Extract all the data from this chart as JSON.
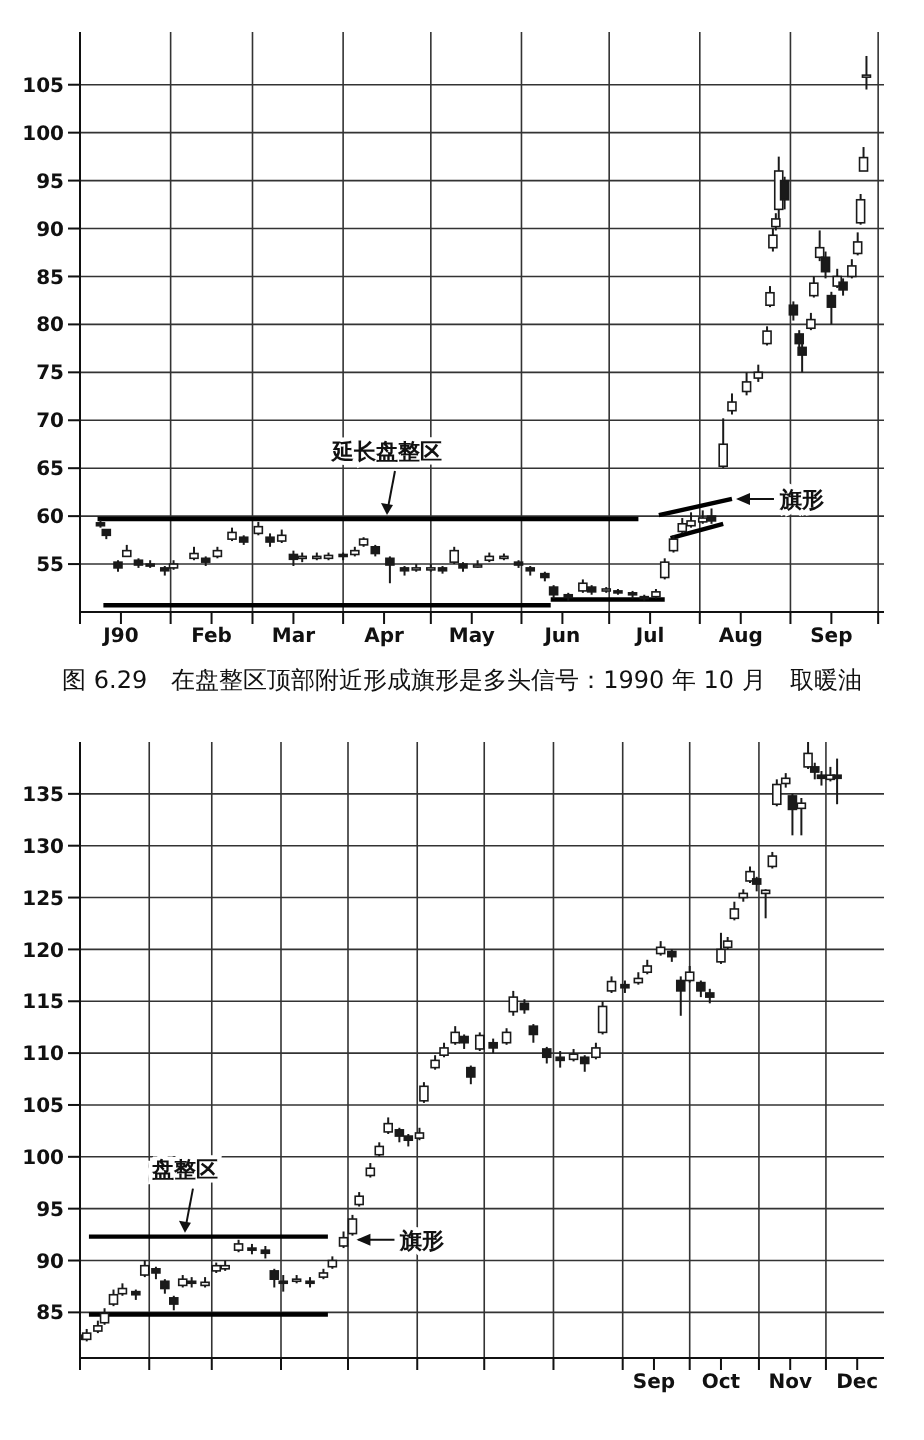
{
  "chart_data": [
    {
      "type": "candlestick",
      "title": "图 6.29　在盘整区顶部附近形成旗形是多头信号：1990 年 10 月　取暖油",
      "color": "#1a1a1a",
      "grid": true,
      "xlim": [
        "1990-01-01",
        "1990-10-03"
      ],
      "ylim": [
        50,
        110.5
      ],
      "yticks": [
        55,
        60,
        65,
        70,
        75,
        80,
        85,
        90,
        95,
        100,
        105
      ],
      "xticks": [
        {
          "value": "1990-01-01",
          "label": null
        },
        {
          "value": "1990-01-15",
          "label": "J90"
        },
        {
          "value": "1990-02-01",
          "label": null
        },
        {
          "value": "1990-02-15",
          "label": "Feb"
        },
        {
          "value": "1990-03-01",
          "label": null
        },
        {
          "value": "1990-03-15",
          "label": "Mar"
        },
        {
          "value": "1990-04-01",
          "label": null
        },
        {
          "value": "1990-04-15",
          "label": "Apr"
        },
        {
          "value": "1990-05-01",
          "label": null
        },
        {
          "value": "1990-05-15",
          "label": "May"
        },
        {
          "value": "1990-06-01",
          "label": null
        },
        {
          "value": "1990-06-15",
          "label": "Jun"
        },
        {
          "value": "1990-07-01",
          "label": null
        },
        {
          "value": "1990-07-15",
          "label": "Jul"
        },
        {
          "value": "1990-08-01",
          "label": null
        },
        {
          "value": "1990-08-15",
          "label": "Aug"
        },
        {
          "value": "1990-09-01",
          "label": null
        },
        {
          "value": "1990-09-15",
          "label": "Sep"
        },
        {
          "value": "1990-10-01",
          "label": null
        }
      ],
      "x": [
        "1990-01-08",
        "1990-01-10",
        "1990-01-14",
        "1990-01-17",
        "1990-01-21",
        "1990-01-25",
        "1990-01-30",
        "1990-02-02",
        "1990-02-09",
        "1990-02-13",
        "1990-02-17",
        "1990-02-22",
        "1990-02-26",
        "1990-03-03",
        "1990-03-07",
        "1990-03-11",
        "1990-03-15",
        "1990-03-18",
        "1990-03-23",
        "1990-03-27",
        "1990-04-01",
        "1990-04-05",
        "1990-04-08",
        "1990-04-12",
        "1990-04-17",
        "1990-04-22",
        "1990-04-26",
        "1990-05-01",
        "1990-05-05",
        "1990-05-09",
        "1990-05-12",
        "1990-05-17",
        "1990-05-21",
        "1990-05-26",
        "1990-05-31",
        "1990-06-04",
        "1990-06-09",
        "1990-06-12",
        "1990-06-17",
        "1990-06-22",
        "1990-06-25",
        "1990-06-30",
        "1990-07-04",
        "1990-07-09",
        "1990-07-13",
        "1990-07-17",
        "1990-07-20",
        "1990-07-23",
        "1990-07-26",
        "1990-07-29",
        "1990-08-02",
        "1990-08-05",
        "1990-08-09",
        "1990-08-12",
        "1990-08-17",
        "1990-08-21",
        "1990-08-24",
        "1990-08-25",
        "1990-08-26",
        "1990-08-27",
        "1990-08-28",
        "1990-08-30",
        "1990-09-02",
        "1990-09-04",
        "1990-09-05",
        "1990-09-08",
        "1990-09-09",
        "1990-09-11",
        "1990-09-13",
        "1990-09-15",
        "1990-09-17",
        "1990-09-19",
        "1990-09-22",
        "1990-09-24",
        "1990-09-25",
        "1990-09-26",
        "1990-09-27"
      ],
      "ohlc": [
        [
          59.3,
          59.6,
          58.8,
          59.0
        ],
        [
          58.6,
          58.6,
          57.6,
          58.0
        ],
        [
          55.2,
          55.4,
          54.2,
          54.6
        ],
        [
          55.8,
          57.0,
          55.8,
          56.4
        ],
        [
          55.4,
          55.6,
          54.6,
          54.9
        ],
        [
          55.0,
          55.4,
          54.6,
          54.9
        ],
        [
          54.6,
          54.8,
          53.8,
          54.3
        ],
        [
          54.6,
          55.4,
          54.4,
          55.0
        ],
        [
          55.6,
          56.8,
          55.4,
          56.1
        ],
        [
          55.6,
          55.8,
          54.8,
          55.2
        ],
        [
          55.8,
          56.8,
          55.6,
          56.4
        ],
        [
          57.6,
          58.8,
          57.4,
          58.3
        ],
        [
          57.8,
          58.0,
          57.0,
          57.3
        ],
        [
          58.2,
          59.4,
          58.0,
          58.9
        ],
        [
          57.8,
          58.2,
          56.8,
          57.3
        ],
        [
          57.4,
          58.6,
          57.2,
          58.0
        ],
        [
          56.0,
          56.4,
          54.8,
          55.5
        ],
        [
          55.6,
          56.2,
          55.2,
          55.8
        ],
        [
          55.6,
          56.2,
          55.4,
          55.8
        ],
        [
          55.6,
          56.2,
          55.4,
          55.9
        ],
        [
          56.0,
          56.2,
          55.4,
          55.8
        ],
        [
          56.0,
          56.8,
          55.8,
          56.4
        ],
        [
          57.0,
          57.8,
          56.8,
          57.6
        ],
        [
          56.8,
          57.0,
          55.8,
          56.1
        ],
        [
          55.6,
          55.8,
          53.0,
          54.9
        ],
        [
          54.6,
          54.8,
          53.8,
          54.3
        ],
        [
          54.4,
          55.0,
          54.2,
          54.6
        ],
        [
          54.4,
          55.0,
          54.2,
          54.6
        ],
        [
          54.6,
          54.8,
          54.0,
          54.3
        ],
        [
          55.2,
          56.8,
          55.0,
          56.4
        ],
        [
          55.0,
          55.2,
          54.2,
          54.6
        ],
        [
          54.8,
          55.4,
          54.6,
          54.9
        ],
        [
          55.4,
          56.2,
          55.2,
          55.8
        ],
        [
          55.6,
          56.1,
          55.4,
          55.8
        ],
        [
          55.2,
          55.4,
          54.6,
          54.9
        ],
        [
          54.6,
          54.8,
          53.8,
          54.3
        ],
        [
          54.0,
          54.2,
          53.2,
          53.6
        ],
        [
          52.6,
          52.8,
          51.4,
          51.8
        ],
        [
          51.8,
          52.0,
          51.2,
          51.5
        ],
        [
          52.2,
          53.4,
          52.0,
          53.0
        ],
        [
          52.6,
          52.8,
          51.8,
          52.1
        ],
        [
          52.2,
          52.6,
          52.0,
          52.4
        ],
        [
          52.2,
          52.4,
          51.8,
          52.1
        ],
        [
          52.0,
          52.2,
          51.4,
          51.8
        ],
        [
          51.6,
          51.8,
          51.2,
          51.4
        ],
        [
          51.6,
          52.4,
          51.4,
          52.1
        ],
        [
          53.6,
          55.6,
          53.4,
          55.2
        ],
        [
          56.4,
          58.0,
          56.2,
          57.6
        ],
        [
          58.4,
          59.8,
          58.2,
          59.2
        ],
        [
          59.0,
          60.4,
          58.8,
          59.5
        ],
        [
          59.4,
          60.6,
          59.2,
          59.8
        ],
        [
          60.0,
          60.8,
          59.2,
          59.5
        ],
        [
          65.2,
          70.2,
          65.0,
          67.5
        ],
        [
          71.0,
          72.8,
          70.6,
          71.9
        ],
        [
          73.0,
          75.0,
          72.6,
          74.0
        ],
        [
          74.4,
          75.8,
          74.0,
          75.0
        ],
        [
          78.0,
          79.8,
          77.8,
          79.3
        ],
        [
          82.0,
          84.0,
          81.8,
          83.3
        ],
        [
          88.0,
          90.0,
          87.6,
          89.3
        ],
        [
          90.2,
          91.6,
          89.8,
          91.0
        ],
        [
          92.0,
          97.5,
          91.0,
          96.0
        ],
        [
          95.0,
          95.4,
          92.0,
          93.0
        ],
        [
          82.0,
          82.4,
          80.4,
          81.0
        ],
        [
          79.0,
          79.4,
          77.6,
          78.0
        ],
        [
          77.6,
          78.2,
          75.0,
          76.8
        ],
        [
          79.6,
          81.2,
          79.4,
          80.5
        ],
        [
          83.0,
          85.0,
          82.8,
          84.3
        ],
        [
          87.0,
          89.8,
          86.6,
          88.0
        ],
        [
          87.0,
          87.6,
          84.8,
          85.5
        ],
        [
          83.0,
          83.4,
          80.0,
          81.8
        ],
        [
          84.0,
          85.8,
          83.8,
          85.0
        ],
        [
          84.4,
          84.8,
          83.0,
          83.6
        ],
        [
          85.0,
          86.8,
          84.8,
          86.1
        ],
        [
          87.4,
          89.6,
          87.2,
          88.6
        ],
        [
          90.6,
          93.6,
          90.4,
          93.0
        ],
        [
          96.0,
          98.5,
          96.0,
          97.4
        ],
        [
          106.0,
          108.0,
          104.5,
          106.0
        ]
      ],
      "series": [
        {
          "type": "line",
          "color": "#000000",
          "x": [
            "1990-01-07",
            "1990-07-11"
          ],
          "values": [
            59.7,
            59.7
          ]
        },
        {
          "type": "line",
          "color": "#000000",
          "x": [
            "1990-01-09",
            "1990-06-11"
          ],
          "values": [
            50.7,
            50.7
          ]
        },
        {
          "type": "line",
          "color": "#000000",
          "x": [
            "1990-06-11",
            "1990-07-20"
          ],
          "values": [
            51.3,
            51.3
          ]
        },
        {
          "type": "line",
          "color": "#000000",
          "x": [
            "1990-07-18",
            "1990-08-12"
          ],
          "values": [
            60.1,
            61.8
          ]
        },
        {
          "type": "line",
          "color": "#000000",
          "x": [
            "1990-07-22",
            "1990-08-09"
          ],
          "values": [
            57.7,
            59.2
          ]
        }
      ],
      "annotations": [
        {
          "text": "延长盘整区",
          "x": "1990-04-16",
          "y": 59.7
        },
        {
          "text": "旗形",
          "x": "1990-08-12",
          "y": 61.8
        }
      ]
    },
    {
      "type": "candlestick",
      "color": "#1a1a1a",
      "grid": true,
      "xlim": [
        "--01-01",
        "--12-27"
      ],
      "ylim": [
        80.6,
        140
      ],
      "yticks": [
        85,
        90,
        95,
        100,
        105,
        110,
        115,
        120,
        125,
        130,
        135
      ],
      "xticks": [
        {
          "value": "--01-01",
          "label": null
        },
        {
          "value": "--02-01",
          "label": null
        },
        {
          "value": "--03-01",
          "label": null
        },
        {
          "value": "--04-01",
          "label": null
        },
        {
          "value": "--05-01",
          "label": null
        },
        {
          "value": "--06-01",
          "label": null
        },
        {
          "value": "--07-01",
          "label": null
        },
        {
          "value": "--08-01",
          "label": null
        },
        {
          "value": "--09-01",
          "label": null
        },
        {
          "value": "--09-15",
          "label": "Sep"
        },
        {
          "value": "--10-01",
          "label": null
        },
        {
          "value": "--10-15",
          "label": "Oct"
        },
        {
          "value": "--11-01",
          "label": null
        },
        {
          "value": "--11-15",
          "label": "Nov"
        },
        {
          "value": "--12-01",
          "label": null
        },
        {
          "value": "--12-15",
          "label": "Dec"
        }
      ],
      "x": [
        "--01-01",
        "--01-04",
        "--01-09",
        "--01-12",
        "--01-16",
        "--01-20",
        "--01-26",
        "--01-30",
        "--02-04",
        "--02-08",
        "--02-12",
        "--02-16",
        "--02-20",
        "--02-26",
        "--03-03",
        "--03-07",
        "--03-13",
        "--03-19",
        "--03-25",
        "--03-29",
        "--04-02",
        "--04-08",
        "--04-14",
        "--04-20",
        "--04-24",
        "--04-29",
        "--05-03",
        "--05-06",
        "--05-11",
        "--05-15",
        "--05-19",
        "--05-24",
        "--05-28",
        "--06-02",
        "--06-04",
        "--06-09",
        "--06-13",
        "--06-18",
        "--06-22",
        "--06-25",
        "--06-29",
        "--07-05",
        "--07-11",
        "--07-14",
        "--07-19",
        "--07-23",
        "--07-29",
        "--08-04",
        "--08-10",
        "--08-15",
        "--08-20",
        "--08-23",
        "--08-27",
        "--09-02",
        "--09-08",
        "--09-12",
        "--09-18",
        "--09-23",
        "--09-27",
        "--10-01",
        "--10-06",
        "--10-10",
        "--10-15",
        "--10-18",
        "--10-21",
        "--10-25",
        "--10-28",
        "--10-31",
        "--11-04",
        "--11-07",
        "--11-09",
        "--11-13",
        "--11-16",
        "--11-20",
        "--11-23",
        "--11-26",
        "--11-29",
        "--12-03",
        "--12-06"
      ],
      "ohlc": [
        [
          82.8,
          83.2,
          81.6,
          82.4
        ],
        [
          82.4,
          83.4,
          82.2,
          83.0
        ],
        [
          83.2,
          84.2,
          83.0,
          83.7
        ],
        [
          84.0,
          85.4,
          83.8,
          84.9
        ],
        [
          85.8,
          87.2,
          85.6,
          86.7
        ],
        [
          86.8,
          87.8,
          86.6,
          87.3
        ],
        [
          87.0,
          87.2,
          86.2,
          86.7
        ],
        [
          88.6,
          90.0,
          88.4,
          89.5
        ],
        [
          89.2,
          89.4,
          88.2,
          88.8
        ],
        [
          88.0,
          88.2,
          86.8,
          87.3
        ],
        [
          86.4,
          86.6,
          85.2,
          85.8
        ],
        [
          87.6,
          88.6,
          87.4,
          88.2
        ],
        [
          88.0,
          88.4,
          87.4,
          87.9
        ],
        [
          87.6,
          88.4,
          87.4,
          87.9
        ],
        [
          89.0,
          89.8,
          88.8,
          89.5
        ],
        [
          89.2,
          90.0,
          89.0,
          89.5
        ],
        [
          91.0,
          92.0,
          90.8,
          91.6
        ],
        [
          91.2,
          91.6,
          90.6,
          91.0
        ],
        [
          91.0,
          91.4,
          90.2,
          90.7
        ],
        [
          89.0,
          89.2,
          87.4,
          88.2
        ],
        [
          88.0,
          88.6,
          87.0,
          87.9
        ],
        [
          88.0,
          88.6,
          87.8,
          88.2
        ],
        [
          88.0,
          88.4,
          87.4,
          87.9
        ],
        [
          88.4,
          89.2,
          88.2,
          88.8
        ],
        [
          89.4,
          90.4,
          89.2,
          90.0
        ],
        [
          91.4,
          92.8,
          91.2,
          92.2
        ],
        [
          92.6,
          94.4,
          92.4,
          94.0
        ],
        [
          95.4,
          96.6,
          95.2,
          96.2
        ],
        [
          98.2,
          99.4,
          98.0,
          98.9
        ],
        [
          100.2,
          101.4,
          100.0,
          101.0
        ],
        [
          102.4,
          103.8,
          102.2,
          103.2
        ],
        [
          102.6,
          102.8,
          101.4,
          102.0
        ],
        [
          102.0,
          102.2,
          101.0,
          101.6
        ],
        [
          101.8,
          102.8,
          101.6,
          102.3
        ],
        [
          105.4,
          107.2,
          105.2,
          106.8
        ],
        [
          108.6,
          109.8,
          108.4,
          109.3
        ],
        [
          109.8,
          111.0,
          109.6,
          110.5
        ],
        [
          111.0,
          112.6,
          110.8,
          112.0
        ],
        [
          111.6,
          111.8,
          110.4,
          111.0
        ],
        [
          108.6,
          108.8,
          107.0,
          107.7
        ],
        [
          110.4,
          112.0,
          110.2,
          111.7
        ],
        [
          111.0,
          111.4,
          110.0,
          110.5
        ],
        [
          111.0,
          112.4,
          110.8,
          112.0
        ],
        [
          114.0,
          116.0,
          113.6,
          115.4
        ],
        [
          114.8,
          115.2,
          113.8,
          114.2
        ],
        [
          112.6,
          112.8,
          111.0,
          111.8
        ],
        [
          110.4,
          110.6,
          109.0,
          109.6
        ],
        [
          109.6,
          110.2,
          108.6,
          109.3
        ],
        [
          109.4,
          110.4,
          109.2,
          109.9
        ],
        [
          109.6,
          109.8,
          108.2,
          109.0
        ],
        [
          109.6,
          111.0,
          109.4,
          110.5
        ],
        [
          112.0,
          115.0,
          111.8,
          114.5
        ],
        [
          116.0,
          117.4,
          115.8,
          116.9
        ],
        [
          116.6,
          117.0,
          115.8,
          116.3
        ],
        [
          116.8,
          117.8,
          116.6,
          117.2
        ],
        [
          117.8,
          119.0,
          117.6,
          118.4
        ],
        [
          119.6,
          120.8,
          119.4,
          120.2
        ],
        [
          119.8,
          120.0,
          118.8,
          119.3
        ],
        [
          117.0,
          117.4,
          113.6,
          116.0
        ],
        [
          117.0,
          118.4,
          116.8,
          117.8
        ],
        [
          116.8,
          117.0,
          115.4,
          116.0
        ],
        [
          115.8,
          116.2,
          114.8,
          115.4
        ],
        [
          118.8,
          121.6,
          118.6,
          120.0
        ],
        [
          120.2,
          121.2,
          120.0,
          120.8
        ],
        [
          123.0,
          124.6,
          122.8,
          123.9
        ],
        [
          125.0,
          125.8,
          124.6,
          125.4
        ],
        [
          126.6,
          128.0,
          126.4,
          127.5
        ],
        [
          126.8,
          127.0,
          125.6,
          126.3
        ],
        [
          125.4,
          125.8,
          123.0,
          125.7
        ],
        [
          128.0,
          129.4,
          127.8,
          129.0
        ],
        [
          134.0,
          136.4,
          133.8,
          135.9
        ],
        [
          136.0,
          137.0,
          135.6,
          136.5
        ],
        [
          134.8,
          135.0,
          131.0,
          133.5
        ],
        [
          133.6,
          134.6,
          131.0,
          134.1
        ],
        [
          137.6,
          140.0,
          137.4,
          138.9
        ],
        [
          137.6,
          138.0,
          136.4,
          137.1
        ],
        [
          136.8,
          137.2,
          135.8,
          136.5
        ],
        [
          136.4,
          137.6,
          136.2,
          136.8
        ],
        [
          136.8,
          138.4,
          134.0,
          136.5
        ]
      ],
      "series": [
        {
          "type": "line",
          "color": "#000000",
          "x": [
            "--01-05",
            "--04-22"
          ],
          "values": [
            92.3,
            92.3
          ]
        },
        {
          "type": "line",
          "color": "#000000",
          "x": [
            "--01-05",
            "--04-22"
          ],
          "values": [
            84.8,
            84.8
          ]
        }
      ],
      "annotations": [
        {
          "text": "盘整区",
          "x": "--02-17",
          "y": 92.3
        },
        {
          "text": "旗形",
          "x": "--05-03",
          "y": 92.0
        }
      ]
    }
  ]
}
